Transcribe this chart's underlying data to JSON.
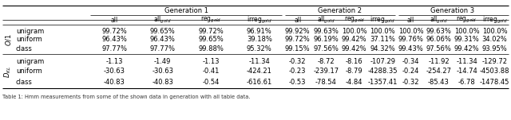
{
  "title_gen1": "Generation 1",
  "title_gen2": "Generation 2",
  "title_gen3": "Generation 3",
  "col_headers": [
    "all",
    "all$_{gold}$",
    "reg$_{gold}$",
    "irreg$_{gold}$"
  ],
  "row_group1_label": "O/1",
  "row_group2_label": "D_KL",
  "row_labels": [
    "unigram",
    "uniform",
    "class"
  ],
  "data": {
    "O1": {
      "gen1": [
        "99.72%",
        "99.65%",
        "99.72%",
        "96.91%",
        "96.43%",
        "96.43%",
        "99.65%",
        "39.18%",
        "97.77%",
        "97.77%",
        "99.88%",
        "95.32%"
      ],
      "gen2": [
        "99.92%",
        "99.63%",
        "100.0%",
        "100.0%",
        "99.72%",
        "96.19%",
        "99.42%",
        "37.11%",
        "99.15%",
        "97.56%",
        "99.42%",
        "94.32%"
      ],
      "gen3": [
        "100.0%",
        "99.63%",
        "100.0%",
        "100.0%",
        "99.76%",
        "96.06%",
        "99.31%",
        "34.02%",
        "99.43%",
        "97.56%",
        "99.42%",
        "93.95%"
      ]
    },
    "DKL": {
      "gen1": [
        "-1.13",
        "-1.49",
        "-1.13",
        "-11.34",
        "-30.63",
        "-30.63",
        "-0.41",
        "-424.21",
        "-40.83",
        "-40.83",
        "-0.54",
        "-616.61"
      ],
      "gen2": [
        "-0.32",
        "-8.72",
        "-8.16",
        "-107.29",
        "-0.23",
        "-239.17",
        "-8.79",
        "-4288.35",
        "-0.53",
        "-78.54",
        "-4.84",
        "-1357.41"
      ],
      "gen3": [
        "-0.34",
        "-11.92",
        "-11.34",
        "-129.72",
        "-0.24",
        "-254.27",
        "-14.74",
        "-4503.88",
        "-0.32",
        "-85.43",
        "-6.78",
        "-1478.45"
      ]
    }
  },
  "bg_color": "#ffffff",
  "line_color": "#000000",
  "font_size": 6.0,
  "caption": "Table 1: ..."
}
